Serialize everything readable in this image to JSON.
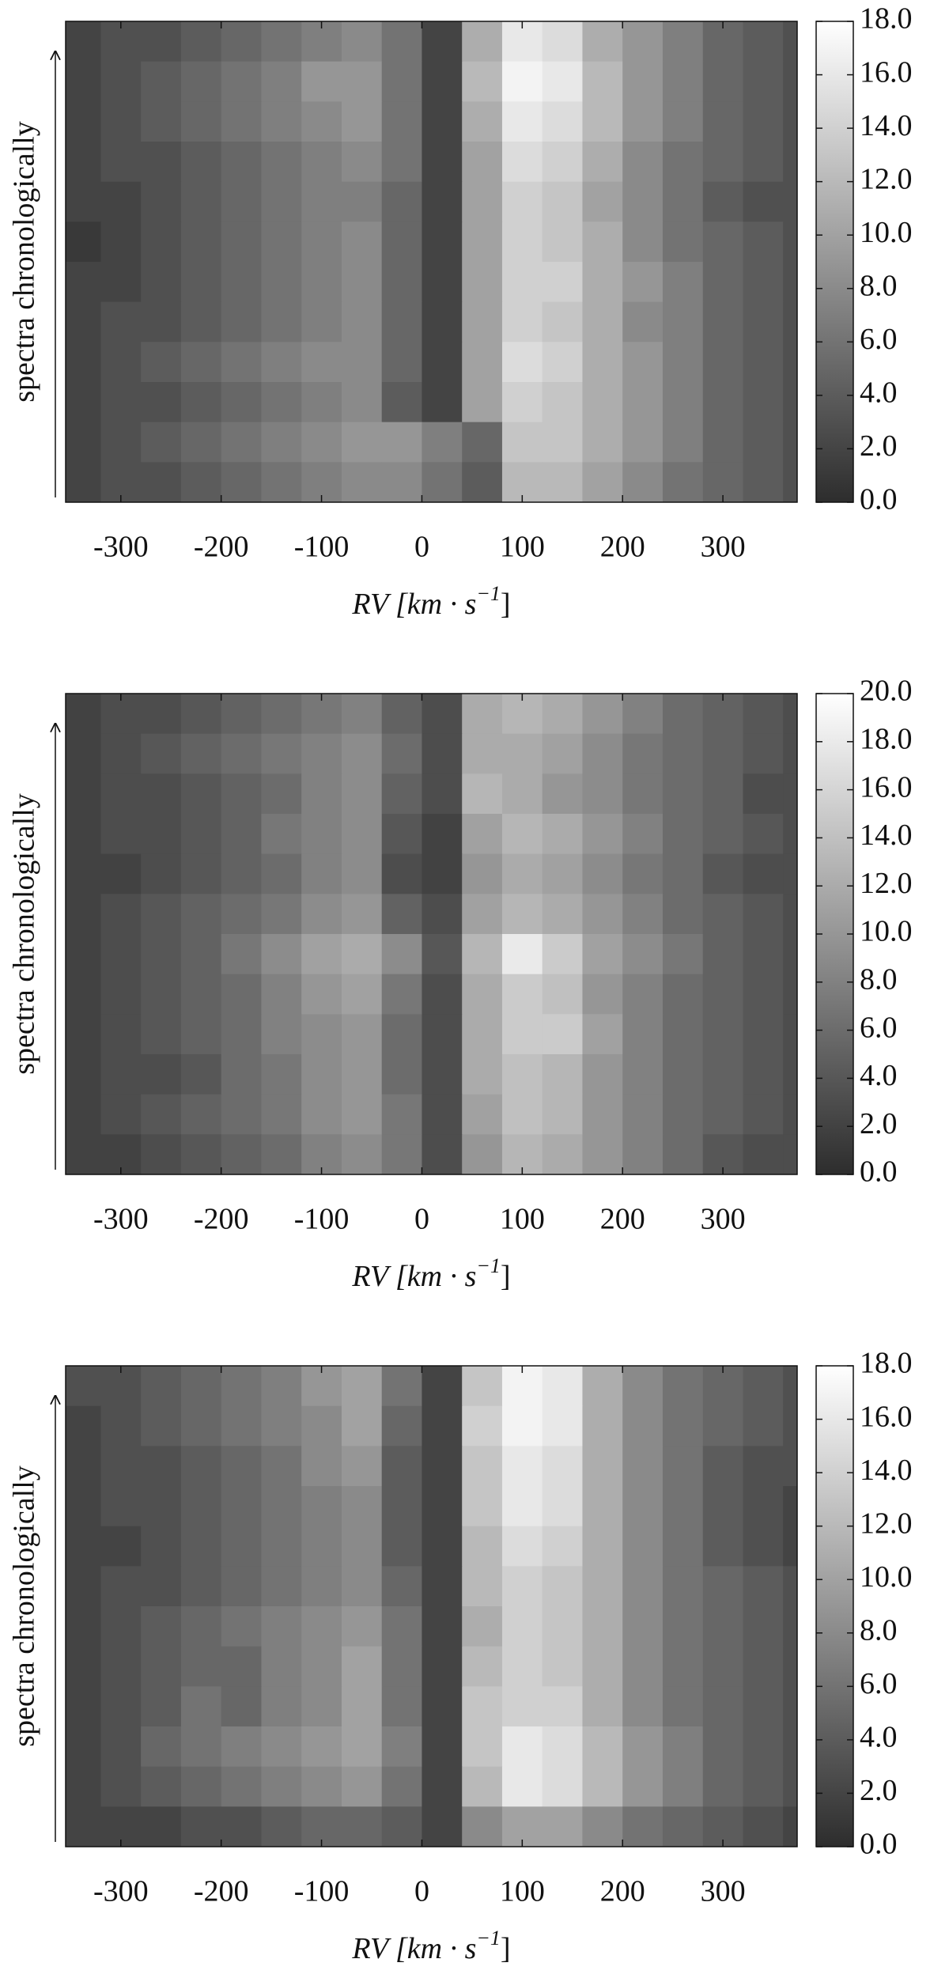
{
  "chart_data": [
    {
      "type": "heatmap",
      "ylabel": "spectra chronologically",
      "xlabel": "RV [km · s",
      "xlabel_exp": "−1",
      "xlabel_end": "]",
      "xlim": [
        -355,
        374
      ],
      "xticks": [
        -300,
        -200,
        -100,
        0,
        100,
        200,
        300
      ],
      "x": [
        -340,
        -300,
        -260,
        -220,
        -180,
        -140,
        -100,
        -60,
        -20,
        20,
        60,
        100,
        140,
        180,
        220,
        260,
        300,
        340,
        380
      ],
      "zlim": [
        0,
        18
      ],
      "zticks": [
        {
          "value": 0,
          "label": "0.0"
        },
        {
          "value": 2,
          "label": "2.0"
        },
        {
          "value": 4,
          "label": "4.0"
        },
        {
          "value": 6,
          "label": "6.0"
        },
        {
          "value": 8,
          "label": "8.0"
        },
        {
          "value": 10,
          "label": "10.0"
        },
        {
          "value": 12,
          "label": "12.0"
        },
        {
          "value": 14,
          "label": "14.0"
        },
        {
          "value": 16,
          "label": "16.0"
        },
        {
          "value": 18,
          "label": "18.0"
        }
      ],
      "z": [
        [
          2,
          3,
          3,
          4,
          5,
          6,
          7,
          8,
          6,
          2,
          11,
          16,
          15,
          11,
          9,
          7,
          5,
          4,
          3
        ],
        [
          2,
          3,
          4,
          5,
          6,
          7,
          9,
          9,
          6,
          2,
          12,
          17,
          16,
          12,
          9,
          7,
          5,
          4,
          3
        ],
        [
          2,
          3,
          4,
          5,
          6,
          7,
          8,
          9,
          6,
          2,
          11,
          16,
          15,
          12,
          9,
          7,
          5,
          4,
          3
        ],
        [
          2,
          3,
          3,
          4,
          5,
          6,
          7,
          8,
          6,
          2,
          10,
          15,
          14,
          11,
          8,
          6,
          5,
          4,
          3
        ],
        [
          2,
          2,
          3,
          4,
          5,
          6,
          7,
          7,
          5,
          2,
          10,
          14,
          13,
          10,
          8,
          6,
          4,
          3,
          3
        ],
        [
          1,
          2,
          3,
          4,
          5,
          6,
          7,
          8,
          5,
          2,
          10,
          14,
          13,
          11,
          8,
          6,
          5,
          4,
          3
        ],
        [
          2,
          2,
          3,
          4,
          5,
          6,
          7,
          8,
          5,
          2,
          10,
          14,
          14,
          11,
          9,
          7,
          5,
          4,
          3
        ],
        [
          2,
          3,
          3,
          4,
          5,
          6,
          7,
          8,
          5,
          2,
          10,
          14,
          13,
          11,
          8,
          7,
          5,
          4,
          3
        ],
        [
          2,
          3,
          4,
          5,
          6,
          7,
          8,
          8,
          5,
          2,
          10,
          15,
          14,
          11,
          9,
          7,
          5,
          4,
          3
        ],
        [
          2,
          3,
          3,
          4,
          5,
          6,
          7,
          8,
          4,
          2,
          10,
          14,
          13,
          11,
          9,
          7,
          5,
          4,
          3
        ],
        [
          2,
          3,
          4,
          5,
          6,
          7,
          8,
          9,
          9,
          7,
          5,
          13,
          13,
          11,
          9,
          7,
          5,
          4,
          3
        ],
        [
          2,
          3,
          3,
          4,
          5,
          6,
          7,
          8,
          8,
          6,
          4,
          12,
          12,
          10,
          8,
          6,
          5,
          4,
          3
        ]
      ]
    },
    {
      "type": "heatmap",
      "ylabel": "spectra chronologically",
      "xlabel": "RV [km · s",
      "xlabel_exp": "−1",
      "xlabel_end": "]",
      "xlim": [
        -355,
        374
      ],
      "xticks": [
        -300,
        -200,
        -100,
        0,
        100,
        200,
        300
      ],
      "x": [
        -340,
        -300,
        -260,
        -220,
        -180,
        -140,
        -100,
        -60,
        -20,
        20,
        60,
        100,
        140,
        180,
        220,
        260,
        300,
        340,
        380
      ],
      "zlim": [
        0,
        20
      ],
      "zticks": [
        {
          "value": 0,
          "label": "0.0"
        },
        {
          "value": 2,
          "label": "2.0"
        },
        {
          "value": 4,
          "label": "4.0"
        },
        {
          "value": 6,
          "label": "6.0"
        },
        {
          "value": 8,
          "label": "8.0"
        },
        {
          "value": 10,
          "label": "10.0"
        },
        {
          "value": 12,
          "label": "12.0"
        },
        {
          "value": 14,
          "label": "14.0"
        },
        {
          "value": 16,
          "label": "16.0"
        },
        {
          "value": 18,
          "label": "18.0"
        },
        {
          "value": 20,
          "label": "20.0"
        }
      ],
      "z": [
        [
          2,
          3,
          3,
          4,
          5,
          6,
          7,
          8,
          5,
          3,
          12,
          13,
          12,
          10,
          8,
          6,
          5,
          4,
          3
        ],
        [
          2,
          3,
          4,
          5,
          6,
          7,
          8,
          9,
          6,
          3,
          12,
          12,
          11,
          9,
          7,
          6,
          5,
          4,
          3
        ],
        [
          2,
          3,
          3,
          4,
          5,
          6,
          8,
          9,
          5,
          3,
          13,
          12,
          10,
          9,
          7,
          6,
          5,
          3,
          3
        ],
        [
          2,
          3,
          3,
          4,
          5,
          7,
          8,
          9,
          4,
          2,
          11,
          13,
          12,
          10,
          8,
          6,
          5,
          4,
          3
        ],
        [
          2,
          2,
          3,
          4,
          5,
          6,
          8,
          9,
          3,
          2,
          10,
          12,
          11,
          9,
          7,
          6,
          4,
          3,
          3
        ],
        [
          2,
          3,
          4,
          5,
          6,
          7,
          9,
          10,
          5,
          3,
          11,
          13,
          12,
          10,
          8,
          6,
          5,
          4,
          3
        ],
        [
          2,
          3,
          4,
          5,
          7,
          9,
          11,
          12,
          9,
          4,
          13,
          18,
          15,
          11,
          9,
          7,
          5,
          4,
          3
        ],
        [
          2,
          3,
          4,
          5,
          6,
          8,
          10,
          11,
          7,
          3,
          12,
          15,
          14,
          10,
          8,
          6,
          5,
          4,
          3
        ],
        [
          2,
          3,
          4,
          5,
          6,
          8,
          9,
          10,
          6,
          3,
          12,
          15,
          15,
          11,
          8,
          6,
          5,
          4,
          3
        ],
        [
          2,
          3,
          3,
          4,
          6,
          7,
          9,
          10,
          6,
          3,
          12,
          14,
          13,
          10,
          8,
          6,
          5,
          4,
          3
        ],
        [
          2,
          3,
          4,
          5,
          6,
          7,
          9,
          10,
          7,
          3,
          11,
          14,
          13,
          10,
          8,
          6,
          5,
          4,
          3
        ],
        [
          2,
          2,
          3,
          4,
          5,
          6,
          8,
          9,
          7,
          3,
          10,
          13,
          12,
          10,
          8,
          6,
          4,
          3,
          3
        ]
      ]
    },
    {
      "type": "heatmap",
      "ylabel": "spectra chronologically",
      "xlabel": "RV [km · s",
      "xlabel_exp": "−1",
      "xlabel_end": "]",
      "xlim": [
        -355,
        374
      ],
      "xticks": [
        -300,
        -200,
        -100,
        0,
        100,
        200,
        300
      ],
      "x": [
        -340,
        -300,
        -260,
        -220,
        -180,
        -140,
        -100,
        -60,
        -20,
        20,
        60,
        100,
        140,
        180,
        220,
        260,
        300,
        340,
        380
      ],
      "zlim": [
        0,
        18
      ],
      "zticks": [
        {
          "value": 0,
          "label": "0.0"
        },
        {
          "value": 2,
          "label": "2.0"
        },
        {
          "value": 4,
          "label": "4.0"
        },
        {
          "value": 6,
          "label": "6.0"
        },
        {
          "value": 8,
          "label": "8.0"
        },
        {
          "value": 10,
          "label": "10.0"
        },
        {
          "value": 12,
          "label": "12.0"
        },
        {
          "value": 14,
          "label": "14.0"
        },
        {
          "value": 16,
          "label": "16.0"
        },
        {
          "value": 18,
          "label": "18.0"
        }
      ],
      "z": [
        [
          3,
          3,
          4,
          5,
          6,
          7,
          9,
          10,
          6,
          2,
          13,
          17,
          16,
          11,
          8,
          6,
          5,
          4,
          3
        ],
        [
          2,
          3,
          4,
          5,
          6,
          7,
          8,
          10,
          5,
          2,
          14,
          17,
          16,
          11,
          8,
          6,
          5,
          4,
          3
        ],
        [
          2,
          3,
          3,
          4,
          5,
          6,
          8,
          9,
          4,
          2,
          13,
          16,
          15,
          11,
          8,
          6,
          4,
          3,
          3
        ],
        [
          2,
          3,
          3,
          4,
          5,
          6,
          7,
          8,
          4,
          2,
          13,
          16,
          15,
          11,
          8,
          6,
          4,
          3,
          2
        ],
        [
          2,
          2,
          3,
          4,
          5,
          6,
          7,
          8,
          4,
          2,
          12,
          15,
          14,
          11,
          8,
          6,
          4,
          3,
          2
        ],
        [
          2,
          3,
          3,
          4,
          5,
          6,
          7,
          8,
          5,
          2,
          12,
          14,
          13,
          11,
          8,
          6,
          5,
          4,
          3
        ],
        [
          2,
          3,
          4,
          5,
          6,
          7,
          8,
          9,
          6,
          2,
          11,
          14,
          13,
          11,
          8,
          6,
          5,
          4,
          3
        ],
        [
          2,
          3,
          4,
          5,
          5,
          7,
          8,
          10,
          6,
          2,
          12,
          14,
          13,
          11,
          8,
          6,
          5,
          4,
          3
        ],
        [
          2,
          3,
          4,
          6,
          5,
          7,
          8,
          10,
          6,
          2,
          13,
          14,
          14,
          11,
          8,
          6,
          5,
          4,
          3
        ],
        [
          2,
          3,
          5,
          6,
          7,
          8,
          9,
          10,
          7,
          2,
          13,
          16,
          15,
          12,
          9,
          7,
          5,
          4,
          3
        ],
        [
          2,
          3,
          4,
          5,
          6,
          7,
          8,
          9,
          6,
          2,
          12,
          16,
          15,
          12,
          9,
          7,
          5,
          4,
          3
        ],
        [
          2,
          2,
          2,
          3,
          3,
          4,
          5,
          5,
          4,
          2,
          8,
          10,
          10,
          8,
          6,
          5,
          4,
          3,
          2
        ]
      ]
    }
  ]
}
